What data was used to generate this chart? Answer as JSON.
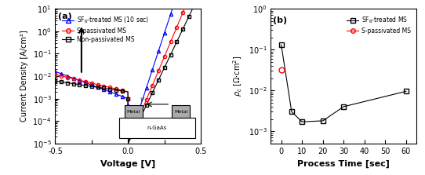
{
  "panel_a": {
    "xlabel": "Voltage [V]",
    "ylabel": "Current Density [A/cm²]",
    "xlim": [
      -0.5,
      0.5
    ],
    "label": "(a)"
  },
  "panel_b": {
    "xlabel": "Process Time [sec]",
    "label": "(b)",
    "sf6_x": [
      0,
      5,
      10,
      20,
      30,
      60
    ],
    "sf6_y": [
      0.13,
      0.003,
      0.0017,
      0.0018,
      0.004,
      0.0095
    ],
    "s_pass_x": [
      0
    ],
    "s_pass_y": [
      0.032
    ]
  }
}
